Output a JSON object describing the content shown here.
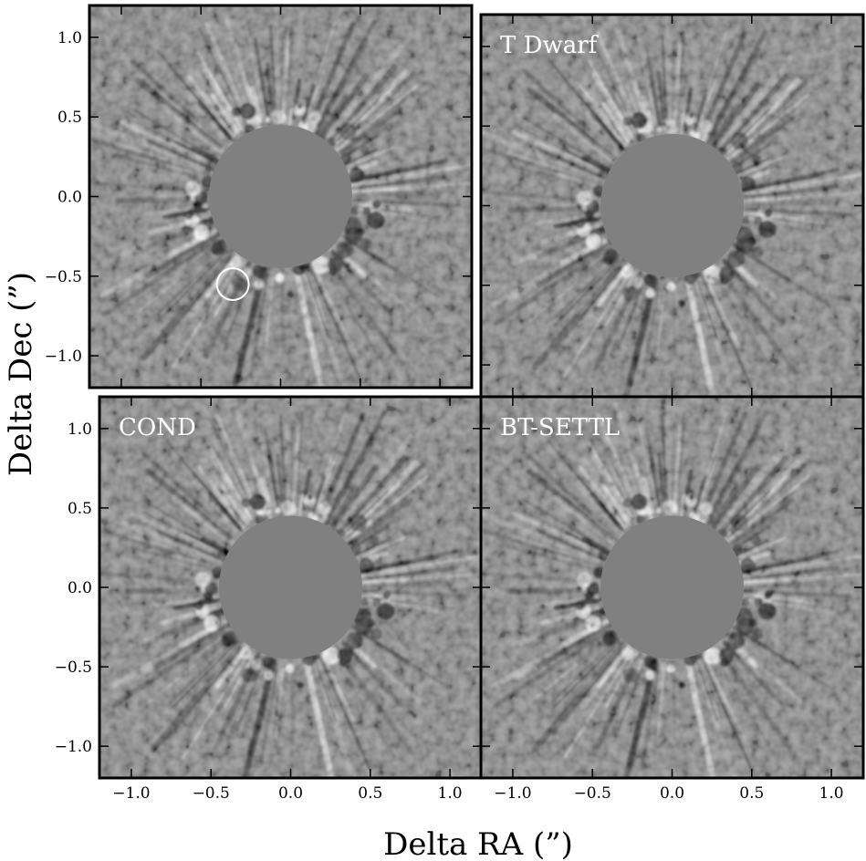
{
  "chart_data": {
    "type": "heatmap",
    "xlabel": "Delta RA (”)",
    "ylabel": "Delta Dec (”)",
    "xlim": [
      -1.2,
      1.2
    ],
    "ylim": [
      -1.2,
      1.2
    ],
    "xticks": [
      -1.0,
      -0.5,
      0.0,
      0.5,
      1.0
    ],
    "yticks": [
      -1.0,
      -0.5,
      0.0,
      0.5,
      1.0
    ],
    "xtick_labels": [
      "−1.0",
      "−0.5",
      "0.0",
      "0.5",
      "1.0"
    ],
    "ytick_labels": [
      "−1.0",
      "−0.5",
      "0.0",
      "0.5",
      "1.0"
    ],
    "mask_radius": 0.45,
    "colormap": "gray",
    "colors": {
      "mask": "#808080",
      "background": "#808080",
      "frame": "#000000",
      "label": "#ffffff",
      "marker": "#ffffff"
    },
    "panels": [
      {
        "id": "top-left",
        "label": "",
        "marker": {
          "x": -0.3,
          "y": -0.55,
          "r": 0.1
        }
      },
      {
        "id": "top-right",
        "label": "T Dwarf"
      },
      {
        "id": "bottom-left",
        "label": "COND"
      },
      {
        "id": "bottom-right",
        "label": "BT-SETTL"
      }
    ]
  }
}
